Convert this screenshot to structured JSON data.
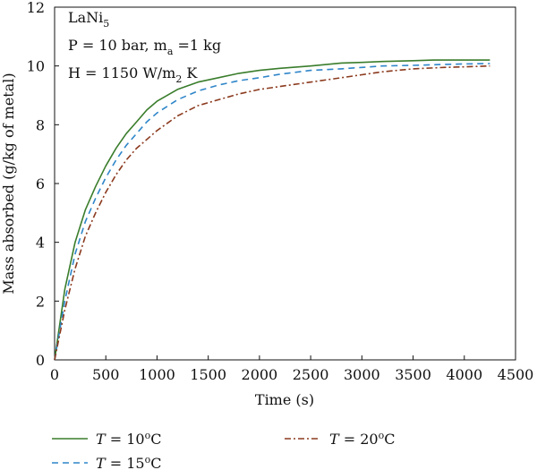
{
  "chart_data": {
    "type": "line",
    "xlabel": "Time (s)",
    "ylabel": "Mass absorbed (g/kg of metal)",
    "xlim": [
      0,
      4500
    ],
    "ylim": [
      0,
      12
    ],
    "xticks": [
      0,
      500,
      1000,
      1500,
      2000,
      2500,
      3000,
      3500,
      4000,
      4500
    ],
    "yticks": [
      0,
      2,
      4,
      6,
      8,
      10,
      12
    ],
    "grid": false,
    "legend_position": "bottom",
    "annotation": {
      "line1_main": "LaNi",
      "line1_sub": "5",
      "line2_a": "P = 10 bar, m",
      "line2_sub": "a",
      "line2_b": " =1 kg",
      "line3_a": "H = 1150 W/m",
      "line3_sub": "2",
      "line3_b": " K"
    },
    "series": [
      {
        "name_prefix": "T",
        "name_rest": " = 10",
        "name_sup": "o",
        "name_unit": "C",
        "color": "#3a7d2c",
        "dash": "solid",
        "x": [
          0,
          100,
          200,
          300,
          400,
          500,
          600,
          700,
          800,
          900,
          1000,
          1200,
          1400,
          1600,
          1800,
          2000,
          2200,
          2500,
          2800,
          3000,
          3200,
          3500,
          3700,
          4000,
          4250
        ],
        "y": [
          0,
          2.4,
          4.0,
          5.1,
          5.9,
          6.6,
          7.2,
          7.7,
          8.1,
          8.5,
          8.8,
          9.2,
          9.45,
          9.6,
          9.75,
          9.85,
          9.92,
          10.0,
          10.1,
          10.12,
          10.15,
          10.18,
          10.2,
          10.2,
          10.2
        ]
      },
      {
        "name_prefix": "T",
        "name_rest": " = 15",
        "name_sup": "o",
        "name_unit": "C",
        "color": "#2f86c9",
        "dash": "dashed",
        "x": [
          0,
          100,
          200,
          300,
          400,
          500,
          600,
          700,
          800,
          900,
          1000,
          1200,
          1400,
          1600,
          1800,
          2000,
          2200,
          2500,
          2800,
          3000,
          3200,
          3500,
          3800,
          4000,
          4250
        ],
        "y": [
          0,
          2.0,
          3.6,
          4.7,
          5.5,
          6.2,
          6.8,
          7.3,
          7.7,
          8.1,
          8.4,
          8.85,
          9.15,
          9.35,
          9.5,
          9.6,
          9.72,
          9.85,
          9.9,
          9.95,
          10.0,
          10.02,
          10.05,
          10.07,
          10.08
        ]
      },
      {
        "name_prefix": "T",
        "name_rest": " = 20",
        "name_sup": "o",
        "name_unit": "C",
        "color": "#8b3a1e",
        "dash": "dashdot",
        "x": [
          0,
          100,
          200,
          300,
          400,
          500,
          600,
          700,
          800,
          900,
          1000,
          1200,
          1400,
          1600,
          1800,
          2000,
          2200,
          2500,
          2800,
          3000,
          3200,
          3500,
          3800,
          4000,
          4250
        ],
        "y": [
          0,
          1.7,
          3.1,
          4.2,
          5.0,
          5.7,
          6.3,
          6.8,
          7.2,
          7.5,
          7.8,
          8.3,
          8.65,
          8.85,
          9.05,
          9.2,
          9.3,
          9.45,
          9.6,
          9.7,
          9.8,
          9.9,
          9.95,
          9.97,
          10.0
        ]
      }
    ]
  }
}
